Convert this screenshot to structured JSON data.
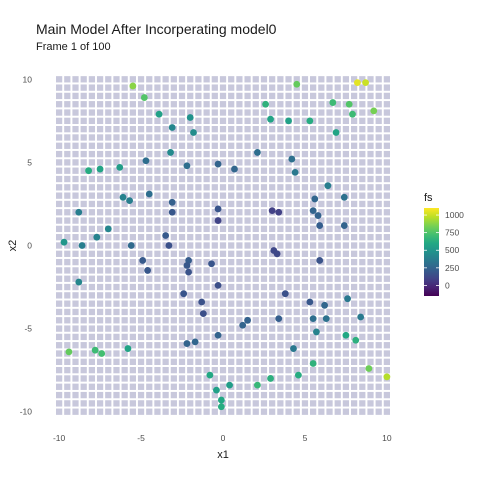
{
  "chart_data": {
    "type": "scatter",
    "title": "Main Model After Incorperating model0",
    "subtitle": "Frame 1 of 100",
    "xlabel": "x1",
    "ylabel": "x2",
    "xlim": [
      -10.8,
      10.8
    ],
    "ylim": [
      -10.8,
      10.8
    ],
    "xticks": [
      -10,
      -5,
      0,
      5,
      10
    ],
    "yticks": [
      -10,
      -5,
      0,
      5,
      10
    ],
    "xtick_labels": [
      "-10",
      "-5",
      "0",
      "5",
      "10"
    ],
    "ytick_labels": [
      "-10",
      "-5",
      "0",
      "5",
      "10"
    ],
    "background": "tile grid of pale lavender squares",
    "legend": {
      "title": "fs",
      "placement": "right",
      "colormap": "viridis",
      "range": [
        -150,
        1100
      ],
      "ticks": [
        0,
        250,
        500,
        750,
        1000
      ],
      "tick_labels": [
        "0",
        "250",
        "500",
        "750",
        "1000"
      ]
    },
    "points": [
      {
        "x": -5.5,
        "y": 9.6,
        "fs": 880
      },
      {
        "x": -4.8,
        "y": 8.9,
        "fs": 760
      },
      {
        "x": -3.9,
        "y": 7.9,
        "fs": 560
      },
      {
        "x": -3.1,
        "y": 7.1,
        "fs": 420
      },
      {
        "x": -2.0,
        "y": 7.7,
        "fs": 480
      },
      {
        "x": -1.8,
        "y": 6.8,
        "fs": 450
      },
      {
        "x": 2.6,
        "y": 8.5,
        "fs": 650
      },
      {
        "x": 2.9,
        "y": 7.6,
        "fs": 580
      },
      {
        "x": 4.5,
        "y": 9.7,
        "fs": 800
      },
      {
        "x": 4.0,
        "y": 7.5,
        "fs": 560
      },
      {
        "x": 5.3,
        "y": 7.5,
        "fs": 620
      },
      {
        "x": 6.7,
        "y": 8.6,
        "fs": 700
      },
      {
        "x": 7.7,
        "y": 8.5,
        "fs": 760
      },
      {
        "x": 7.9,
        "y": 7.9,
        "fs": 700
      },
      {
        "x": 8.2,
        "y": 9.8,
        "fs": 1050
      },
      {
        "x": 8.7,
        "y": 9.8,
        "fs": 1000
      },
      {
        "x": 9.2,
        "y": 8.1,
        "fs": 840
      },
      {
        "x": 6.9,
        "y": 6.8,
        "fs": 580
      },
      {
        "x": -8.2,
        "y": 4.5,
        "fs": 620
      },
      {
        "x": -7.5,
        "y": 4.6,
        "fs": 580
      },
      {
        "x": -6.3,
        "y": 4.7,
        "fs": 540
      },
      {
        "x": -6.1,
        "y": 2.9,
        "fs": 400
      },
      {
        "x": -5.7,
        "y": 2.7,
        "fs": 380
      },
      {
        "x": -4.7,
        "y": 5.1,
        "fs": 300
      },
      {
        "x": -4.5,
        "y": 3.1,
        "fs": 300
      },
      {
        "x": -3.2,
        "y": 5.6,
        "fs": 440
      },
      {
        "x": -2.2,
        "y": 4.8,
        "fs": 300
      },
      {
        "x": -0.3,
        "y": 4.9,
        "fs": 250
      },
      {
        "x": 0.7,
        "y": 4.6,
        "fs": 260
      },
      {
        "x": 2.1,
        "y": 5.6,
        "fs": 300
      },
      {
        "x": 4.2,
        "y": 5.2,
        "fs": 310
      },
      {
        "x": 4.4,
        "y": 4.4,
        "fs": 350
      },
      {
        "x": 6.4,
        "y": 3.6,
        "fs": 380
      },
      {
        "x": 5.6,
        "y": 2.8,
        "fs": 260
      },
      {
        "x": 7.4,
        "y": 2.9,
        "fs": 320
      },
      {
        "x": 5.5,
        "y": 2.1,
        "fs": 250
      },
      {
        "x": 5.8,
        "y": 1.8,
        "fs": 240
      },
      {
        "x": 5.9,
        "y": 1.2,
        "fs": 220
      },
      {
        "x": 7.4,
        "y": 1.2,
        "fs": 250
      },
      {
        "x": 3.0,
        "y": 2.1,
        "fs": 90
      },
      {
        "x": 3.4,
        "y": 2.0,
        "fs": 90
      },
      {
        "x": -3.1,
        "y": 2.6,
        "fs": 230
      },
      {
        "x": -3.1,
        "y": 2.0,
        "fs": 190
      },
      {
        "x": -0.3,
        "y": 2.2,
        "fs": 180
      },
      {
        "x": -0.3,
        "y": 1.5,
        "fs": 100
      },
      {
        "x": -8.8,
        "y": 2.0,
        "fs": 380
      },
      {
        "x": -7.7,
        "y": 0.5,
        "fs": 400
      },
      {
        "x": -7.0,
        "y": 1.0,
        "fs": 420
      },
      {
        "x": -9.7,
        "y": 0.2,
        "fs": 500
      },
      {
        "x": -8.6,
        "y": 0.0,
        "fs": 380
      },
      {
        "x": -5.6,
        "y": 0.0,
        "fs": 280
      },
      {
        "x": -3.5,
        "y": 0.6,
        "fs": 200
      },
      {
        "x": -3.3,
        "y": 0.0,
        "fs": 160
      },
      {
        "x": -4.9,
        "y": -0.9,
        "fs": 200
      },
      {
        "x": -4.6,
        "y": -1.5,
        "fs": 190
      },
      {
        "x": -2.1,
        "y": -0.9,
        "fs": 210
      },
      {
        "x": -2.2,
        "y": -1.2,
        "fs": 190
      },
      {
        "x": -2.1,
        "y": -1.6,
        "fs": 170
      },
      {
        "x": -0.7,
        "y": -1.1,
        "fs": 180
      },
      {
        "x": -0.3,
        "y": -2.4,
        "fs": 150
      },
      {
        "x": 3.1,
        "y": -0.3,
        "fs": 120
      },
      {
        "x": 3.3,
        "y": -0.5,
        "fs": 120
      },
      {
        "x": 5.9,
        "y": -0.9,
        "fs": 170
      },
      {
        "x": -2.4,
        "y": -2.9,
        "fs": 180
      },
      {
        "x": -1.3,
        "y": -3.4,
        "fs": 160
      },
      {
        "x": -1.2,
        "y": -4.1,
        "fs": 150
      },
      {
        "x": 3.8,
        "y": -2.9,
        "fs": 160
      },
      {
        "x": 5.3,
        "y": -3.4,
        "fs": 190
      },
      {
        "x": 6.2,
        "y": -3.6,
        "fs": 260
      },
      {
        "x": 7.6,
        "y": -3.2,
        "fs": 350
      },
      {
        "x": 5.5,
        "y": -4.4,
        "fs": 300
      },
      {
        "x": 6.3,
        "y": -4.4,
        "fs": 320
      },
      {
        "x": 8.4,
        "y": -4.3,
        "fs": 360
      },
      {
        "x": 5.7,
        "y": -5.2,
        "fs": 400
      },
      {
        "x": 7.5,
        "y": -5.4,
        "fs": 600
      },
      {
        "x": 8.1,
        "y": -5.7,
        "fs": 640
      },
      {
        "x": 1.2,
        "y": -4.8,
        "fs": 250
      },
      {
        "x": 1.5,
        "y": -4.5,
        "fs": 240
      },
      {
        "x": 3.4,
        "y": -4.4,
        "fs": 220
      },
      {
        "x": -2.2,
        "y": -5.9,
        "fs": 250
      },
      {
        "x": -1.7,
        "y": -5.8,
        "fs": 260
      },
      {
        "x": -0.3,
        "y": -5.4,
        "fs": 250
      },
      {
        "x": -8.8,
        "y": -2.2,
        "fs": 420
      },
      {
        "x": -9.4,
        "y": -6.4,
        "fs": 800
      },
      {
        "x": -7.8,
        "y": -6.3,
        "fs": 700
      },
      {
        "x": -7.4,
        "y": -6.5,
        "fs": 720
      },
      {
        "x": -5.8,
        "y": -6.2,
        "fs": 580
      },
      {
        "x": 4.3,
        "y": -6.2,
        "fs": 350
      },
      {
        "x": 5.5,
        "y": -7.1,
        "fs": 650
      },
      {
        "x": 4.6,
        "y": -7.8,
        "fs": 620
      },
      {
        "x": 2.1,
        "y": -8.4,
        "fs": 680
      },
      {
        "x": 2.9,
        "y": -8.0,
        "fs": 640
      },
      {
        "x": -0.8,
        "y": -7.8,
        "fs": 600
      },
      {
        "x": -0.4,
        "y": -8.7,
        "fs": 560
      },
      {
        "x": 0.4,
        "y": -8.4,
        "fs": 540
      },
      {
        "x": -0.1,
        "y": -9.3,
        "fs": 600
      },
      {
        "x": -0.1,
        "y": -9.7,
        "fs": 620
      },
      {
        "x": 8.9,
        "y": -7.4,
        "fs": 820
      },
      {
        "x": 10.0,
        "y": -7.9,
        "fs": 960
      }
    ]
  }
}
